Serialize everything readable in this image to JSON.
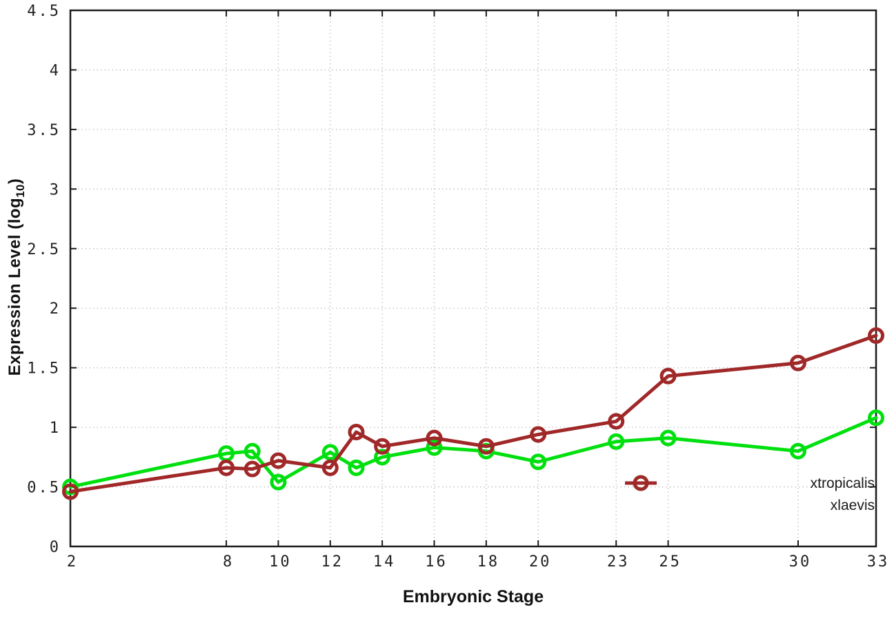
{
  "chart_data": {
    "type": "line",
    "title": "",
    "xlabel": "Embryonic Stage",
    "ylabel": "Expression Level (log10)",
    "ylabel_parts": {
      "prefix": "Expression Level (log",
      "sub": "10",
      "suffix": ")"
    },
    "xlim": [
      2,
      33
    ],
    "ylim": [
      0,
      4.5
    ],
    "x_ticks": [
      2,
      8,
      10,
      12,
      14,
      16,
      18,
      20,
      23,
      25,
      30,
      33
    ],
    "x_tick_labels": [
      "2",
      "8",
      "10",
      "12",
      "14",
      "16",
      "18",
      "20",
      "23",
      "25",
      "30",
      "33"
    ],
    "y_ticks": [
      0,
      0.5,
      1,
      1.5,
      2,
      2.5,
      3,
      3.5,
      4,
      4.5
    ],
    "y_tick_labels": [
      "0",
      "0.5",
      "1",
      "1.5",
      "2",
      "2.5",
      "3",
      "3.5",
      "4",
      "4.5"
    ],
    "grid": true,
    "legend_position": "inside-bottom-right",
    "x": [
      2,
      8,
      9,
      10,
      12,
      13,
      14,
      16,
      18,
      20,
      23,
      25,
      30,
      33
    ],
    "series": [
      {
        "name": "xtropicalis",
        "color": "#00e00e",
        "values": [
          0.5,
          0.78,
          0.8,
          0.54,
          0.79,
          0.66,
          0.75,
          0.83,
          0.8,
          0.71,
          0.88,
          0.91,
          0.8,
          1.08
        ]
      },
      {
        "name": "xlaevis",
        "color": "#a02828",
        "values": [
          0.46,
          0.66,
          0.65,
          0.72,
          0.66,
          0.96,
          0.84,
          0.91,
          0.84,
          0.94,
          1.05,
          1.43,
          1.54,
          1.77
        ]
      }
    ],
    "colors": {
      "grid": "#bdbdbd",
      "axis": "#1a1a1a",
      "tick_text": "#222222"
    }
  }
}
